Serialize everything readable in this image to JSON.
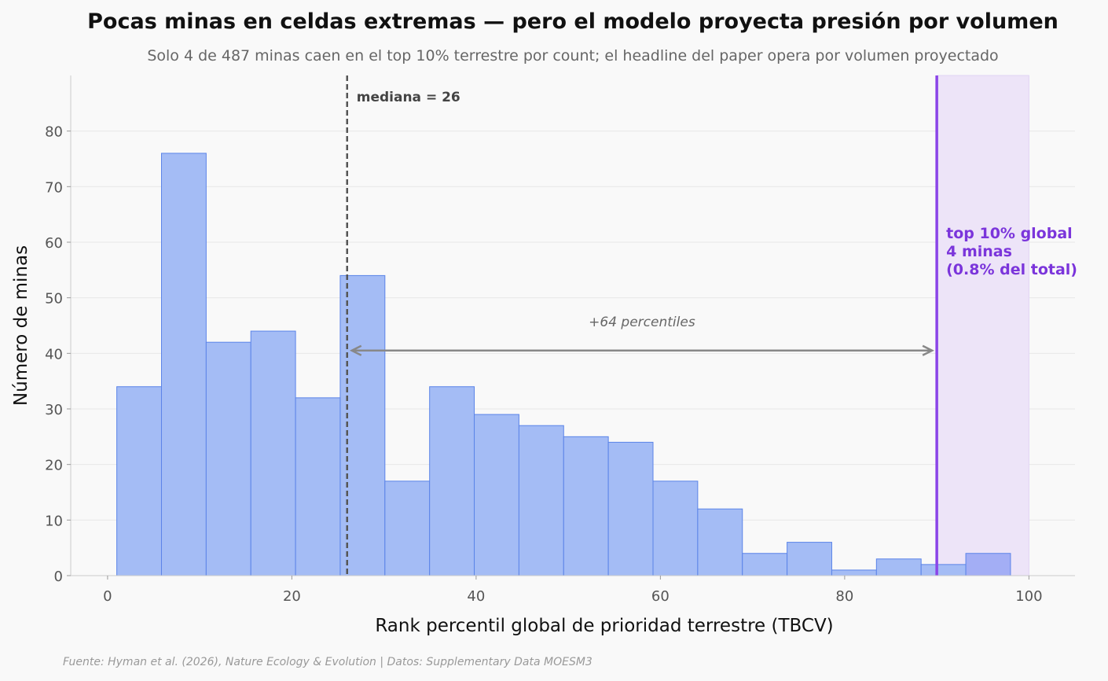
{
  "chart_data": {
    "type": "bar",
    "title": "Pocas minas en celdas extremas — pero el modelo proyecta presión por volumen",
    "subtitle": "Solo 4 de 487 minas caen en el top 10% terrestre por count; el headline del paper opera por volumen proyectado",
    "xlabel": "Rank percentil global de prioridad terrestre (TBCV)",
    "ylabel": "Número de minas",
    "xlim": [
      -4,
      105
    ],
    "ylim": [
      0,
      90
    ],
    "xticks": [
      0,
      20,
      40,
      60,
      80,
      100
    ],
    "yticks": [
      0,
      10,
      20,
      30,
      40,
      50,
      60,
      70,
      80
    ],
    "grid": "horizontal",
    "bins": [
      {
        "x0": 1.0,
        "x1": 5.85,
        "count": 34
      },
      {
        "x0": 5.85,
        "x1": 10.7,
        "count": 76
      },
      {
        "x0": 10.7,
        "x1": 15.55,
        "count": 42
      },
      {
        "x0": 15.55,
        "x1": 20.4,
        "count": 44
      },
      {
        "x0": 20.4,
        "x1": 25.25,
        "count": 32
      },
      {
        "x0": 25.25,
        "x1": 30.1,
        "count": 54
      },
      {
        "x0": 30.1,
        "x1": 34.95,
        "count": 17
      },
      {
        "x0": 34.95,
        "x1": 39.8,
        "count": 34
      },
      {
        "x0": 39.8,
        "x1": 44.65,
        "count": 29
      },
      {
        "x0": 44.65,
        "x1": 49.5,
        "count": 27
      },
      {
        "x0": 49.5,
        "x1": 54.35,
        "count": 25
      },
      {
        "x0": 54.35,
        "x1": 59.2,
        "count": 24
      },
      {
        "x0": 59.2,
        "x1": 64.05,
        "count": 17
      },
      {
        "x0": 64.05,
        "x1": 68.9,
        "count": 12
      },
      {
        "x0": 68.9,
        "x1": 73.75,
        "count": 4
      },
      {
        "x0": 73.75,
        "x1": 78.6,
        "count": 6
      },
      {
        "x0": 78.6,
        "x1": 83.45,
        "count": 1
      },
      {
        "x0": 83.45,
        "x1": 88.3,
        "count": 3
      },
      {
        "x0": 88.3,
        "x1": 93.15,
        "count": 2
      },
      {
        "x0": 93.15,
        "x1": 98.0,
        "count": 4
      }
    ],
    "median": {
      "value": 26,
      "label": "mediana = 26"
    },
    "threshold": {
      "value": 90,
      "label_lines": [
        "top 10% global",
        "4 minas",
        "(0.8% del total)"
      ]
    },
    "shaded_region": [
      90,
      100
    ],
    "arrow": {
      "from": 26,
      "to": 90,
      "y": 40.5,
      "label": "+64 percentiles"
    },
    "colors": {
      "bar_fill": "#a4bcf5",
      "bar_edge": "#5b84e8",
      "bar_top10_fill": "#a3aef5",
      "median": "#555555",
      "threshold": "#8b45e8",
      "threshold_text": "#7b35db",
      "shade": "#ede4f8",
      "arrow": "#888888"
    }
  },
  "source": "Fuente: Hyman et al. (2026), Nature Ecology & Evolution | Datos: Supplementary Data MOESM3"
}
